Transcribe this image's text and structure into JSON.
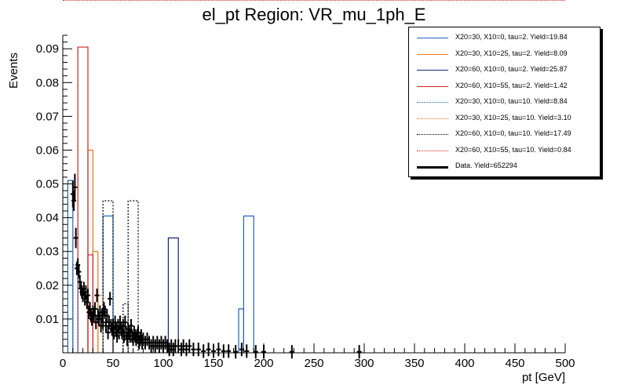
{
  "chart_data": {
    "type": "bar",
    "title": "el_pt Region: VR_mu_1ph_E",
    "xlabel": "pt [GeV]",
    "ylabel": "Events",
    "xlim": [
      0,
      500
    ],
    "ylim": [
      0,
      0.094
    ],
    "x_ticks": [
      "0",
      "50",
      "100",
      "150",
      "200",
      "250",
      "300",
      "350",
      "400",
      "450",
      "500"
    ],
    "y_ticks": [
      {
        "v": 0.01,
        "label": "0.01"
      },
      {
        "v": 0.02,
        "label": "0.02"
      },
      {
        "v": 0.03,
        "label": "0.03"
      },
      {
        "v": 0.04,
        "label": "0.04"
      },
      {
        "v": 0.05,
        "label": "0.05"
      },
      {
        "v": 0.06,
        "label": "0.06"
      },
      {
        "v": 0.07,
        "label": "0.07"
      },
      {
        "v": 0.08,
        "label": "0.08"
      },
      {
        "v": 0.09,
        "label": "0.09"
      }
    ],
    "bin_edges": [
      0,
      5,
      10,
      15,
      20,
      25,
      30,
      35,
      40,
      45,
      50,
      55,
      60,
      65,
      70,
      75,
      80,
      85,
      90,
      95,
      100,
      105,
      110,
      115,
      120,
      125,
      130,
      135,
      140,
      145,
      150,
      155,
      160,
      165,
      170,
      175,
      180,
      185,
      190,
      195,
      200,
      205,
      210,
      215,
      220,
      225,
      230,
      235,
      240,
      245,
      250,
      255,
      260,
      265,
      270,
      275,
      280,
      285,
      290,
      295,
      300,
      305,
      310,
      315,
      320,
      325,
      330,
      335,
      340,
      345,
      350,
      355,
      360,
      365,
      370,
      375,
      380,
      385,
      390,
      395,
      400,
      405,
      410,
      415,
      420,
      425,
      430,
      435,
      440,
      445,
      450,
      455,
      460,
      465,
      470,
      475,
      480,
      485,
      490,
      495,
      500
    ],
    "legend_placement": "top-right",
    "grid": false,
    "series": [
      {
        "name": "X20=30, X10=0, tau=2. Yield=19.84",
        "color": "#1f63b4",
        "style": "solid",
        "bins": [
          {
            "x": [
              5,
              10
            ],
            "y": 0.051
          },
          {
            "x": [
              40,
              50
            ],
            "y": 0.0405
          },
          {
            "x": [
              175,
              180
            ],
            "y": 0.013
          },
          {
            "x": [
              180,
              190
            ],
            "y": 0.0405
          }
        ]
      },
      {
        "name": "X20=30, X10=25, tau=2. Yield=8.09",
        "color": "#e8761c",
        "style": "solid",
        "bins": [
          {
            "x": [
              25,
              30
            ],
            "y": 0.06
          },
          {
            "x": [
              30,
              35
            ],
            "y": 0.03
          }
        ]
      },
      {
        "name": "X20=60, X10=0, tau=2. Yield=25.87",
        "color": "#1a237e",
        "style": "solid",
        "bins": [
          {
            "x": [
              105,
              115
            ],
            "y": 0.034
          }
        ]
      },
      {
        "name": "X20=60, X10=55, tau=2. Yield=1.42",
        "color": "#c62828",
        "style": "solid",
        "bins": [
          {
            "x": [
              15,
              25
            ],
            "y": 0.0905
          },
          {
            "x": [
              25,
              30
            ],
            "y": 0.029
          }
        ]
      },
      {
        "name": "X20=30, X10=0, tau=10. Yield=8.84",
        "color": "#1f63b4",
        "style": "dotted",
        "bins": [
          {
            "x": [
              10,
              15
            ],
            "y": 0.026
          }
        ]
      },
      {
        "name": "X20=30, X10=25, tau=10. Yield=3.10",
        "color": "#e8761c",
        "style": "dotted",
        "bins": [
          {
            "x": [
              35,
              40
            ],
            "y": 0.017
          }
        ]
      },
      {
        "name": "X20=60, X10=0, tau=10. Yield=17.49",
        "color": "#000000",
        "style": "dotted",
        "bins": [
          {
            "x": [
              40,
              50
            ],
            "y": 0.045
          },
          {
            "x": [
              50,
              60
            ],
            "y": 0.0075
          },
          {
            "x": [
              60,
              65
            ],
            "y": 0.0145
          },
          {
            "x": [
              65,
              75
            ],
            "y": 0.045
          }
        ]
      },
      {
        "name": "X20=60, X10=55, tau=10. Yield=0.84",
        "color": "#d62728",
        "style": "dotted",
        "bins": []
      }
    ],
    "data_series": {
      "name": "Data. Yield=652294",
      "color": "#000000",
      "points": [
        {
          "x": 10,
          "y": 0.047,
          "ey": 0.004
        },
        {
          "x": 11,
          "y": 0.045,
          "ey": 0.003
        },
        {
          "x": 12,
          "y": 0.049,
          "ey": 0.004
        },
        {
          "x": 13,
          "y": 0.034,
          "ey": 0.003
        },
        {
          "x": 14,
          "y": 0.025,
          "ey": 0.002
        },
        {
          "x": 15,
          "y": 0.026,
          "ey": 0.002
        },
        {
          "x": 16,
          "y": 0.024,
          "ey": 0.002
        },
        {
          "x": 17,
          "y": 0.021,
          "ey": 0.002
        },
        {
          "x": 18,
          "y": 0.019,
          "ey": 0.002
        },
        {
          "x": 19,
          "y": 0.018,
          "ey": 0.002
        },
        {
          "x": 20,
          "y": 0.017,
          "ey": 0.002
        },
        {
          "x": 21,
          "y": 0.019,
          "ey": 0.002
        },
        {
          "x": 22,
          "y": 0.016,
          "ey": 0.002
        },
        {
          "x": 23,
          "y": 0.018,
          "ey": 0.002
        },
        {
          "x": 24,
          "y": 0.015,
          "ey": 0.002
        },
        {
          "x": 25,
          "y": 0.017,
          "ey": 0.002
        },
        {
          "x": 26,
          "y": 0.012,
          "ey": 0.002
        },
        {
          "x": 27,
          "y": 0.013,
          "ey": 0.002
        },
        {
          "x": 28,
          "y": 0.011,
          "ey": 0.002
        },
        {
          "x": 29,
          "y": 0.01,
          "ey": 0.002
        },
        {
          "x": 30,
          "y": 0.012,
          "ey": 0.002
        },
        {
          "x": 31,
          "y": 0.011,
          "ey": 0.002
        },
        {
          "x": 32,
          "y": 0.013,
          "ey": 0.002
        },
        {
          "x": 33,
          "y": 0.009,
          "ey": 0.002
        },
        {
          "x": 34,
          "y": 0.017,
          "ey": 0.002
        },
        {
          "x": 35,
          "y": 0.011,
          "ey": 0.002
        },
        {
          "x": 36,
          "y": 0.01,
          "ey": 0.002
        },
        {
          "x": 37,
          "y": 0.012,
          "ey": 0.002
        },
        {
          "x": 38,
          "y": 0.008,
          "ey": 0.002
        },
        {
          "x": 39,
          "y": 0.011,
          "ey": 0.002
        },
        {
          "x": 40,
          "y": 0.009,
          "ey": 0.002
        },
        {
          "x": 41,
          "y": 0.013,
          "ey": 0.002
        },
        {
          "x": 42,
          "y": 0.012,
          "ey": 0.002
        },
        {
          "x": 43,
          "y": 0.008,
          "ey": 0.002
        },
        {
          "x": 44,
          "y": 0.011,
          "ey": 0.002
        },
        {
          "x": 45,
          "y": 0.006,
          "ey": 0.002
        },
        {
          "x": 46,
          "y": 0.009,
          "ey": 0.002
        },
        {
          "x": 47,
          "y": 0.016,
          "ey": 0.002
        },
        {
          "x": 48,
          "y": 0.008,
          "ey": 0.002
        },
        {
          "x": 49,
          "y": 0.007,
          "ey": 0.002
        },
        {
          "x": 50,
          "y": 0.008,
          "ey": 0.002
        },
        {
          "x": 51,
          "y": 0.006,
          "ey": 0.002
        },
        {
          "x": 52,
          "y": 0.009,
          "ey": 0.002
        },
        {
          "x": 53,
          "y": 0.007,
          "ey": 0.002
        },
        {
          "x": 54,
          "y": 0.005,
          "ey": 0.002
        },
        {
          "x": 55,
          "y": 0.008,
          "ey": 0.002
        },
        {
          "x": 56,
          "y": 0.006,
          "ey": 0.002
        },
        {
          "x": 57,
          "y": 0.009,
          "ey": 0.002
        },
        {
          "x": 58,
          "y": 0.007,
          "ey": 0.002
        },
        {
          "x": 59,
          "y": 0.006,
          "ey": 0.002
        },
        {
          "x": 60,
          "y": 0.008,
          "ey": 0.002
        },
        {
          "x": 61,
          "y": 0.005,
          "ey": 0.002
        },
        {
          "x": 62,
          "y": 0.009,
          "ey": 0.002
        },
        {
          "x": 63,
          "y": 0.006,
          "ey": 0.002
        },
        {
          "x": 64,
          "y": 0.004,
          "ey": 0.002
        },
        {
          "x": 65,
          "y": 0.007,
          "ey": 0.002
        },
        {
          "x": 66,
          "y": 0.006,
          "ey": 0.002
        },
        {
          "x": 67,
          "y": 0.005,
          "ey": 0.002
        },
        {
          "x": 68,
          "y": 0.008,
          "ey": 0.002
        },
        {
          "x": 69,
          "y": 0.005,
          "ey": 0.002
        },
        {
          "x": 70,
          "y": 0.004,
          "ey": 0.002
        },
        {
          "x": 71,
          "y": 0.006,
          "ey": 0.002
        },
        {
          "x": 72,
          "y": 0.005,
          "ey": 0.002
        },
        {
          "x": 73,
          "y": 0.004,
          "ey": 0.002
        },
        {
          "x": 74,
          "y": 0.005,
          "ey": 0.002
        },
        {
          "x": 75,
          "y": 0.006,
          "ey": 0.002
        },
        {
          "x": 76,
          "y": 0.003,
          "ey": 0.002
        },
        {
          "x": 77,
          "y": 0.004,
          "ey": 0.002
        },
        {
          "x": 78,
          "y": 0.005,
          "ey": 0.002
        },
        {
          "x": 79,
          "y": 0.003,
          "ey": 0.002
        },
        {
          "x": 80,
          "y": 0.004,
          "ey": 0.002
        },
        {
          "x": 82,
          "y": 0.003,
          "ey": 0.002
        },
        {
          "x": 84,
          "y": 0.004,
          "ey": 0.002
        },
        {
          "x": 86,
          "y": 0.003,
          "ey": 0.002
        },
        {
          "x": 88,
          "y": 0.002,
          "ey": 0.002
        },
        {
          "x": 90,
          "y": 0.003,
          "ey": 0.002
        },
        {
          "x": 92,
          "y": 0.002,
          "ey": 0.002
        },
        {
          "x": 94,
          "y": 0.003,
          "ey": 0.002
        },
        {
          "x": 96,
          "y": 0.002,
          "ey": 0.002
        },
        {
          "x": 98,
          "y": 0.003,
          "ey": 0.002
        },
        {
          "x": 100,
          "y": 0.002,
          "ey": 0.002
        },
        {
          "x": 102,
          "y": 0.003,
          "ey": 0.002
        },
        {
          "x": 104,
          "y": 0.002,
          "ey": 0.002
        },
        {
          "x": 106,
          "y": 0.001,
          "ey": 0.002
        },
        {
          "x": 108,
          "y": 0.002,
          "ey": 0.002
        },
        {
          "x": 110,
          "y": 0.001,
          "ey": 0.002
        },
        {
          "x": 112,
          "y": 0.002,
          "ey": 0.002
        },
        {
          "x": 115,
          "y": 0.002,
          "ey": 0.002
        },
        {
          "x": 118,
          "y": 0.001,
          "ey": 0.002
        },
        {
          "x": 120,
          "y": 0.002,
          "ey": 0.002
        },
        {
          "x": 123,
          "y": 0.001,
          "ey": 0.002
        },
        {
          "x": 126,
          "y": 0.002,
          "ey": 0.002
        },
        {
          "x": 130,
          "y": 0.001,
          "ey": 0.002
        },
        {
          "x": 135,
          "y": 0.001,
          "ey": 0.002
        },
        {
          "x": 140,
          "y": 0.0005,
          "ey": 0.002
        },
        {
          "x": 145,
          "y": 0.001,
          "ey": 0.002
        },
        {
          "x": 150,
          "y": 0.0005,
          "ey": 0.002
        },
        {
          "x": 155,
          "y": 0.001,
          "ey": 0.002
        },
        {
          "x": 160,
          "y": 0.0005,
          "ey": 0.002
        },
        {
          "x": 165,
          "y": 0.0005,
          "ey": 0.002
        },
        {
          "x": 172,
          "y": 0.0003,
          "ey": 0.002
        },
        {
          "x": 178,
          "y": 0.001,
          "ey": 0.002
        },
        {
          "x": 183,
          "y": 0.0005,
          "ey": 0.002
        },
        {
          "x": 192,
          "y": 0.0003,
          "ey": 0.002
        },
        {
          "x": 200,
          "y": 0.0003,
          "ey": 0.002
        },
        {
          "x": 228,
          "y": 0.0003,
          "ey": 0.002
        },
        {
          "x": 295,
          "y": 0.0003,
          "ey": 0.002
        }
      ]
    }
  }
}
